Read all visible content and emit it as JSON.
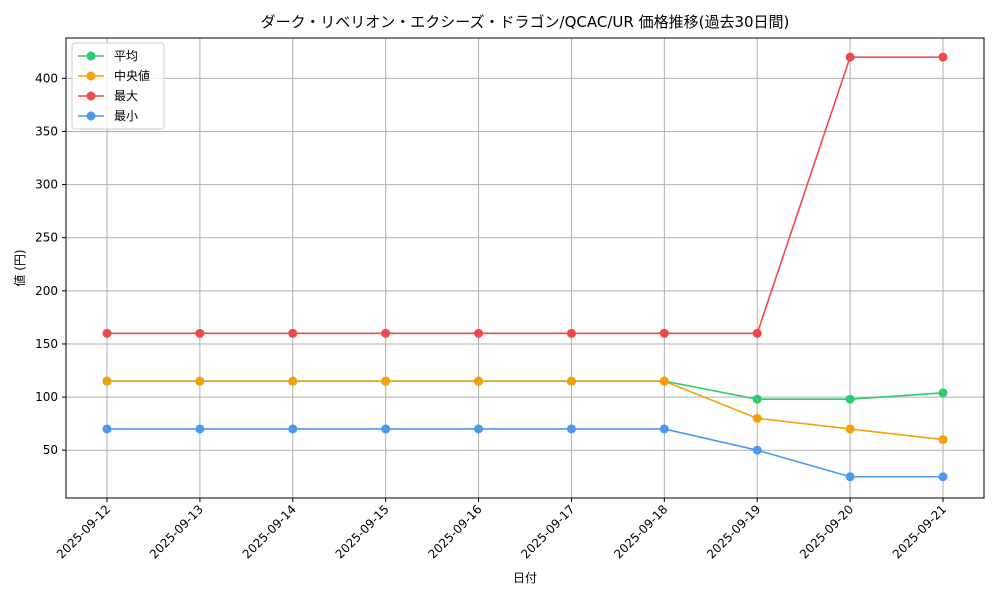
{
  "chart_data": {
    "type": "line",
    "title": "ダーク・リベリオン・エクシーズ・ドラゴン/QCAC/UR 価格推移(過去30日間)",
    "xlabel": "日付",
    "ylabel": "値 (円)",
    "x": [
      "2025-09-12",
      "2025-09-13",
      "2025-09-14",
      "2025-09-15",
      "2025-09-16",
      "2025-09-17",
      "2025-09-18",
      "2025-09-19",
      "2025-09-20",
      "2025-09-21"
    ],
    "yticks": [
      50,
      100,
      150,
      200,
      250,
      300,
      350,
      400
    ],
    "ylim": [
      5,
      438
    ],
    "grid": true,
    "legend_position": "top-left",
    "series": [
      {
        "name": "平均",
        "color": "#2ecc71",
        "values": [
          115,
          115,
          115,
          115,
          115,
          115,
          115,
          98,
          98,
          104
        ]
      },
      {
        "name": "中央値",
        "color": "#f5a00a",
        "values": [
          115,
          115,
          115,
          115,
          115,
          115,
          115,
          80,
          70,
          60
        ]
      },
      {
        "name": "最大",
        "color": "#f04848",
        "values": [
          160,
          160,
          160,
          160,
          160,
          160,
          160,
          160,
          420,
          420
        ]
      },
      {
        "name": "最小",
        "color": "#4a98f0",
        "values": [
          70,
          70,
          70,
          70,
          70,
          70,
          70,
          50,
          25,
          25
        ]
      }
    ]
  }
}
